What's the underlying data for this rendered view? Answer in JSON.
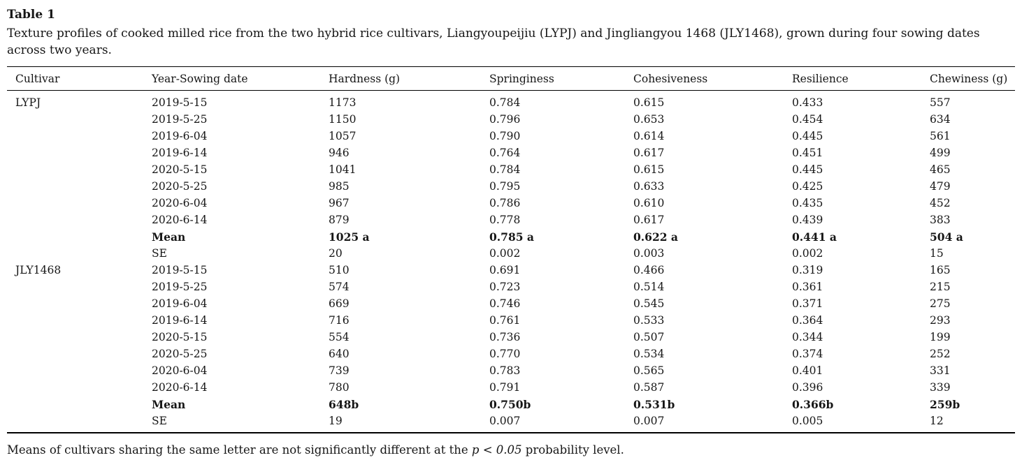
{
  "table": {
    "label": "Table 1",
    "caption": "Texture profiles of cooked milled rice from the two hybrid rice cultivars, Liangyoupeijiu (LYPJ) and Jingliangyou 1468 (JLY1468), grown during four sowing dates across two years.",
    "columns": [
      "Cultivar",
      "Year-Sowing date",
      "Hardness (g)",
      "Springiness",
      "Cohesiveness",
      "Resilience",
      "Chewiness (g)"
    ],
    "rows": [
      {
        "cells": [
          "LYPJ",
          "2019-5-15",
          "1173",
          "0.784",
          "0.615",
          "0.433",
          "557"
        ],
        "bold": false
      },
      {
        "cells": [
          "",
          "2019-5-25",
          "1150",
          "0.796",
          "0.653",
          "0.454",
          "634"
        ],
        "bold": false
      },
      {
        "cells": [
          "",
          "2019-6-04",
          "1057",
          "0.790",
          "0.614",
          "0.445",
          "561"
        ],
        "bold": false
      },
      {
        "cells": [
          "",
          "2019-6-14",
          "946",
          "0.764",
          "0.617",
          "0.451",
          "499"
        ],
        "bold": false
      },
      {
        "cells": [
          "",
          "2020-5-15",
          "1041",
          "0.784",
          "0.615",
          "0.445",
          "465"
        ],
        "bold": false
      },
      {
        "cells": [
          "",
          "2020-5-25",
          "985",
          "0.795",
          "0.633",
          "0.425",
          "479"
        ],
        "bold": false
      },
      {
        "cells": [
          "",
          "2020-6-04",
          "967",
          "0.786",
          "0.610",
          "0.435",
          "452"
        ],
        "bold": false
      },
      {
        "cells": [
          "",
          "2020-6-14",
          "879",
          "0.778",
          "0.617",
          "0.439",
          "383"
        ],
        "bold": false
      },
      {
        "cells": [
          "",
          "Mean",
          "1025 a",
          "0.785 a",
          "0.622 a",
          "0.441 a",
          "504 a"
        ],
        "bold": true
      },
      {
        "cells": [
          "",
          "SE",
          "20",
          "0.002",
          "0.003",
          "0.002",
          "15"
        ],
        "bold": false
      },
      {
        "cells": [
          "JLY1468",
          "2019-5-15",
          "510",
          "0.691",
          "0.466",
          "0.319",
          "165"
        ],
        "bold": false
      },
      {
        "cells": [
          "",
          "2019-5-25",
          "574",
          "0.723",
          "0.514",
          "0.361",
          "215"
        ],
        "bold": false
      },
      {
        "cells": [
          "",
          "2019-6-04",
          "669",
          "0.746",
          "0.545",
          "0.371",
          "275"
        ],
        "bold": false
      },
      {
        "cells": [
          "",
          "2019-6-14",
          "716",
          "0.761",
          "0.533",
          "0.364",
          "293"
        ],
        "bold": false
      },
      {
        "cells": [
          "",
          "2020-5-15",
          "554",
          "0.736",
          "0.507",
          "0.344",
          "199"
        ],
        "bold": false
      },
      {
        "cells": [
          "",
          "2020-5-25",
          "640",
          "0.770",
          "0.534",
          "0.374",
          "252"
        ],
        "bold": false
      },
      {
        "cells": [
          "",
          "2020-6-04",
          "739",
          "0.783",
          "0.565",
          "0.401",
          "331"
        ],
        "bold": false
      },
      {
        "cells": [
          "",
          "2020-6-14",
          "780",
          "0.791",
          "0.587",
          "0.396",
          "339"
        ],
        "bold": false
      },
      {
        "cells": [
          "",
          "Mean",
          "648b",
          "0.750b",
          "0.531b",
          "0.366b",
          "259b"
        ],
        "bold": true
      },
      {
        "cells": [
          "",
          "SE",
          "19",
          "0.007",
          "0.007",
          "0.005",
          "12"
        ],
        "bold": false
      }
    ],
    "footnote": {
      "prefix": "Means of cultivars sharing the same letter are not significantly different at the ",
      "italic": "p < 0.05",
      "suffix": " probability level."
    }
  }
}
